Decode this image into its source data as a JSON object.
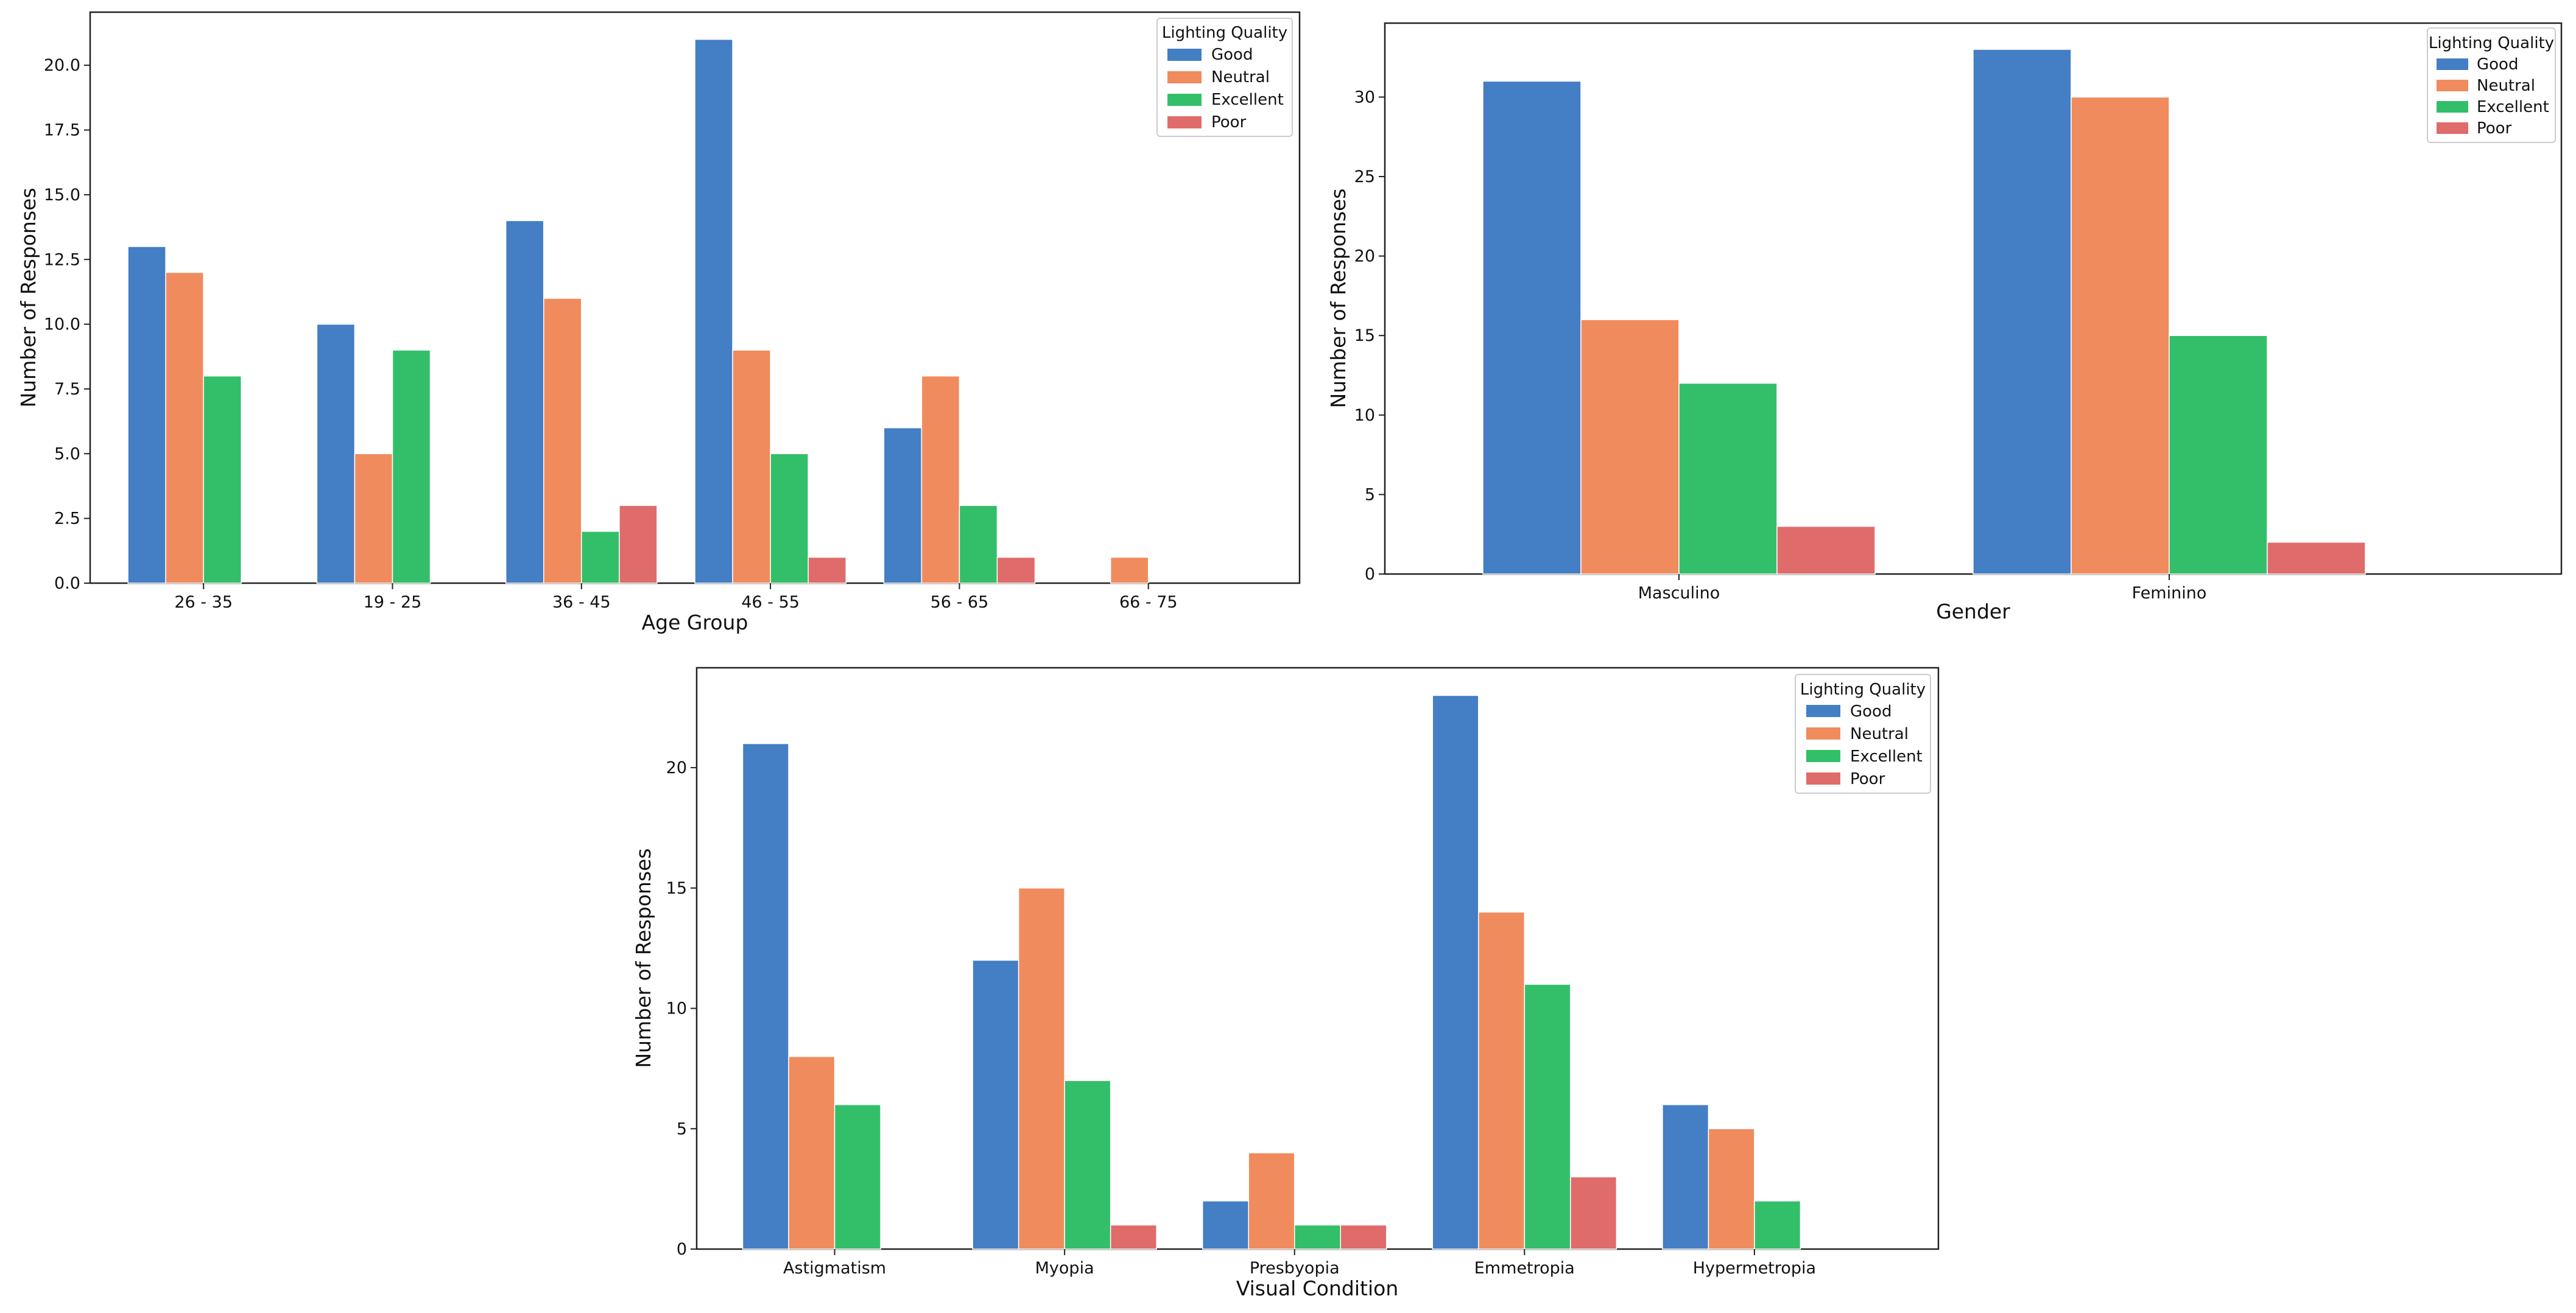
{
  "chart_data": [
    {
      "type": "bar",
      "xlabel": "Age Group",
      "ylabel": "Number of Responses",
      "ylim": [
        0,
        22.05
      ],
      "yticks": [
        "0.0",
        "2.5",
        "5.0",
        "7.5",
        "10.0",
        "12.5",
        "15.0",
        "17.5",
        "20.0"
      ],
      "categories": [
        "26 - 35",
        "19 - 25",
        "36 - 45",
        "46 - 55",
        "56 - 65",
        "66 - 75"
      ],
      "legend_title": "Lighting Quality",
      "legend_position": "top-right",
      "series": [
        {
          "name": "Good",
          "color": "#447ec4",
          "values": [
            13,
            10,
            14,
            21,
            6,
            null
          ]
        },
        {
          "name": "Neutral",
          "color": "#f08b5e",
          "values": [
            12,
            5,
            11,
            9,
            8,
            1
          ]
        },
        {
          "name": "Excellent",
          "color": "#33bf69",
          "values": [
            8,
            9,
            2,
            5,
            3,
            null
          ]
        },
        {
          "name": "Poor",
          "color": "#e06b6b",
          "values": [
            null,
            null,
            3,
            1,
            1,
            null
          ]
        }
      ]
    },
    {
      "type": "bar",
      "xlabel": "Gender",
      "ylabel": "Number of Responses",
      "ylim": [
        0,
        34.65
      ],
      "yticks": [
        "0",
        "5",
        "10",
        "15",
        "20",
        "25",
        "30"
      ],
      "categories": [
        "Masculino",
        "Feminino"
      ],
      "legend_title": "Lighting Quality",
      "legend_position": "top-right",
      "series": [
        {
          "name": "Good",
          "color": "#447ec4",
          "values": [
            31,
            33
          ]
        },
        {
          "name": "Neutral",
          "color": "#f08b5e",
          "values": [
            16,
            30
          ]
        },
        {
          "name": "Excellent",
          "color": "#33bf69",
          "values": [
            12,
            15
          ]
        },
        {
          "name": "Poor",
          "color": "#e06b6b",
          "values": [
            3,
            2
          ]
        }
      ]
    },
    {
      "type": "bar",
      "xlabel": "Visual Condition",
      "ylabel": "Number of Responses",
      "ylim": [
        0,
        24.15
      ],
      "yticks": [
        "0",
        "5",
        "10",
        "15",
        "20"
      ],
      "categories": [
        "Astigmatism",
        "Myopia",
        "Presbyopia",
        "Emmetropia",
        "Hypermetropia"
      ],
      "legend_title": "Lighting Quality",
      "legend_position": "top-right",
      "series": [
        {
          "name": "Good",
          "color": "#447ec4",
          "values": [
            21,
            12,
            2,
            23,
            6
          ]
        },
        {
          "name": "Neutral",
          "color": "#f08b5e",
          "values": [
            8,
            15,
            4,
            14,
            5
          ]
        },
        {
          "name": "Excellent",
          "color": "#33bf69",
          "values": [
            6,
            7,
            1,
            11,
            2
          ]
        },
        {
          "name": "Poor",
          "color": "#e06b6b",
          "values": [
            null,
            1,
            1,
            3,
            null
          ]
        }
      ]
    }
  ]
}
